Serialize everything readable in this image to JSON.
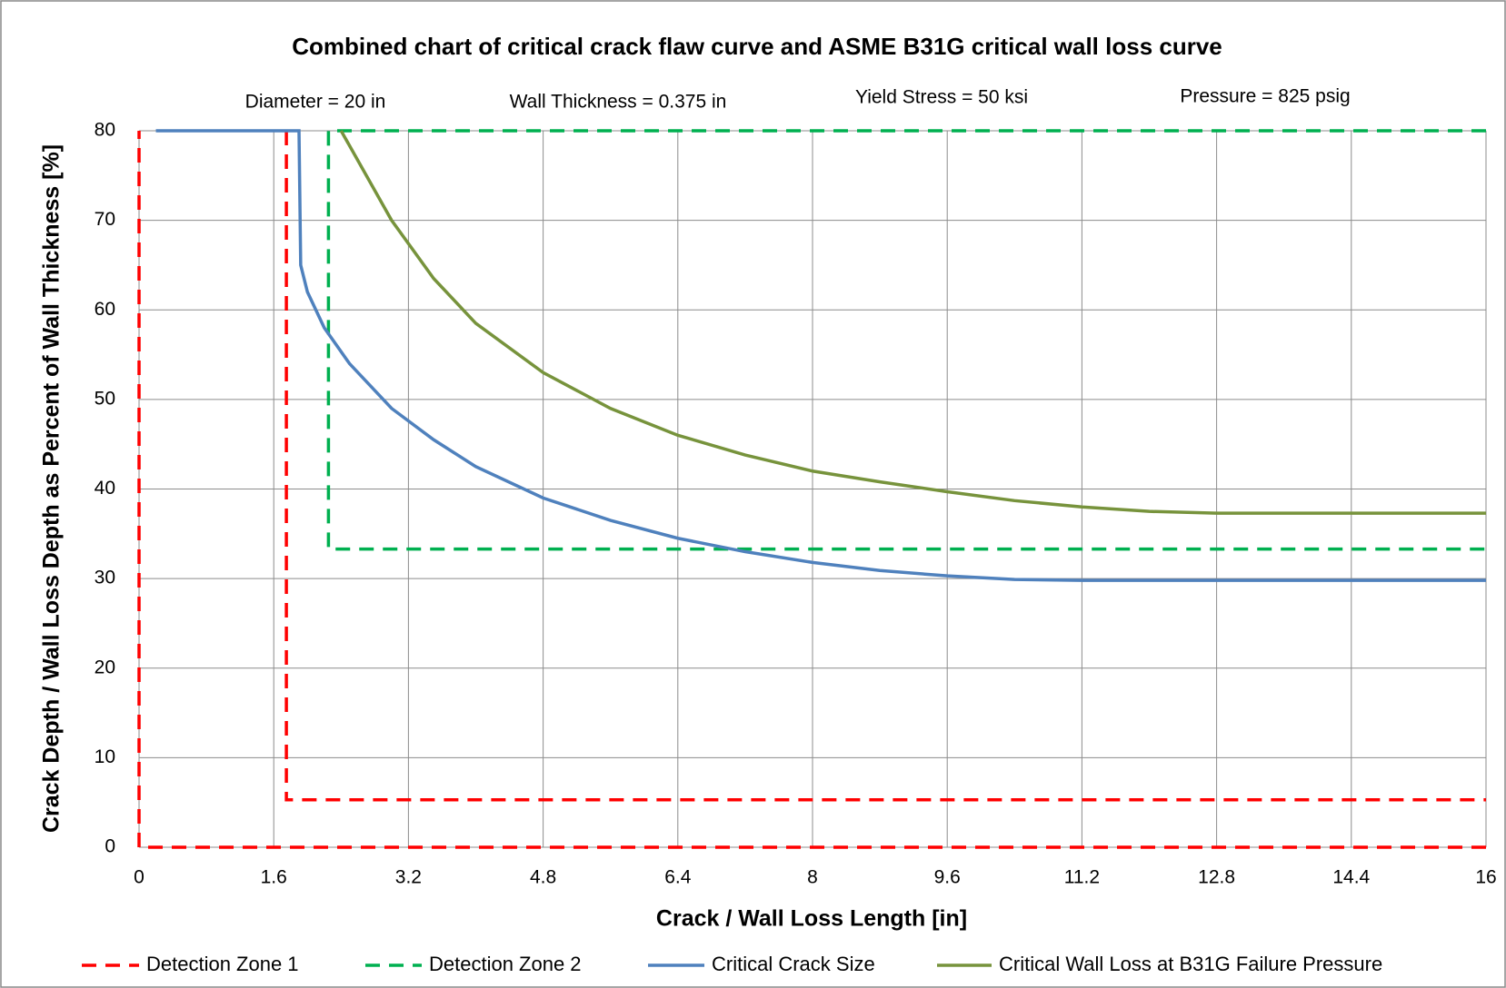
{
  "chart_data": {
    "type": "line",
    "title": "Combined chart of critical crack flaw curve and ASME B31G critical wall loss curve",
    "annotations": [
      "Diameter = 20 in",
      "Wall Thickness = 0.375 in",
      "Yield Stress = 50 ksi",
      "Pressure = 825 psig"
    ],
    "x_label": "Crack / Wall Loss Length [in]",
    "y_label": "Crack Depth / Wall Loss Depth as Percent of  Wall Thickness [%]",
    "xlim": [
      0,
      16
    ],
    "ylim": [
      0,
      80
    ],
    "xticks": [
      0,
      1.6,
      3.2,
      4.8,
      6.4,
      8,
      9.6,
      11.2,
      12.8,
      14.4,
      16
    ],
    "yticks": [
      0,
      10,
      20,
      30,
      40,
      50,
      60,
      70,
      80
    ],
    "grid": true,
    "legend": "bottom",
    "series": [
      {
        "name": "Detection Zone 1",
        "color": "#ff0000",
        "dashed": true,
        "x": [
          16,
          0,
          0,
          0,
          1.75,
          1.75,
          16
        ],
        "values": [
          0,
          0,
          80,
          null,
          80,
          5.3,
          5.3
        ]
      },
      {
        "name": "Detection Zone 2",
        "color": "#00b050",
        "dashed": true,
        "x": [
          16,
          2.25,
          2.25,
          16
        ],
        "values": [
          80,
          80,
          33.3,
          33.3
        ]
      },
      {
        "name": "Critical Crack Size",
        "color": "#4f81bd",
        "dashed": false,
        "x": [
          0.2,
          1.9,
          1.92,
          2.0,
          2.2,
          2.5,
          3.0,
          3.5,
          4.0,
          4.8,
          5.6,
          6.4,
          7.2,
          8,
          8.8,
          9.6,
          10.4,
          11.2,
          16
        ],
        "values": [
          80,
          80,
          65,
          62,
          58,
          54,
          49,
          45.5,
          42.5,
          39,
          36.5,
          34.5,
          33,
          31.8,
          30.9,
          30.3,
          29.9,
          29.8,
          29.8
        ]
      },
      {
        "name": "Critical Wall Loss at B31G Failure Pressure",
        "color": "#77933c",
        "dashed": false,
        "x": [
          2.4,
          3.0,
          3.5,
          4.0,
          4.8,
          5.6,
          6.4,
          7.2,
          8,
          8.8,
          9.6,
          10.4,
          11.2,
          12,
          12.8,
          16
        ],
        "values": [
          80,
          70,
          63.5,
          58.5,
          53,
          49,
          46,
          43.8,
          42,
          40.8,
          39.7,
          38.7,
          38,
          37.5,
          37.3,
          37.3
        ]
      }
    ]
  }
}
